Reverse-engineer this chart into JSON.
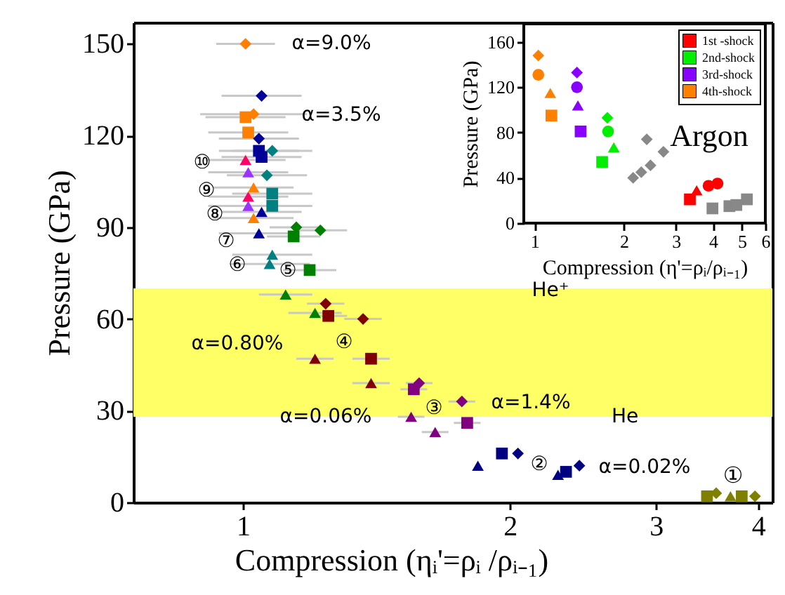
{
  "chart_data": [
    {
      "type": "scatter",
      "xlabel": "Compression (ηᵢ'=ρᵢ /ρᵢ₋₁)",
      "ylabel": "Pressure (GPa)",
      "xlim": [
        0.59,
        2.52
      ],
      "xticks": [
        1,
        2
      ],
      "ylim": [
        0,
        157
      ],
      "yticks": [
        0,
        30,
        60,
        90,
        120,
        150
      ],
      "grid": false,
      "bands": [
        {
          "axis": "y",
          "from": 28,
          "to": 70,
          "color": "#ffff66"
        }
      ],
      "annotations": [
        "α=9.0%",
        "α=3.5%",
        "α=0.80%",
        "α=0.06%",
        "α=1.4%",
        "α=0.02%",
        "He⁺",
        "He",
        "⑩",
        "⑨",
        "⑧",
        "⑦",
        "⑥",
        "⑤",
        "④",
        "③",
        "②"
      ],
      "series": [
        {
          "color": "#ff0066",
          "marker": "triangle",
          "x": [
            1.02,
            1.01
          ],
          "values": [
            100,
            112
          ],
          "xerrors": [
            0.15,
            0.15
          ]
        },
        {
          "color": "#9933ff",
          "marker": "triangle",
          "x": [
            1.02,
            1.02
          ],
          "values": [
            97,
            108
          ],
          "xerrors": [
            0.15,
            0.15
          ]
        },
        {
          "color": "#ff8000",
          "marker": "diamond",
          "x": [
            1.04,
            1.01
          ],
          "values": [
            127,
            150
          ],
          "xerrors": [
            0.2,
            0.11
          ]
        },
        {
          "color": "#ff8000",
          "marker": "square",
          "x": [
            1.02,
            1.01
          ],
          "values": [
            121,
            126
          ],
          "xerrors": [
            0.15,
            0.15
          ]
        },
        {
          "color": "#ff8000",
          "marker": "triangle",
          "x": [
            1.04,
            1.04
          ],
          "values": [
            93,
            103
          ],
          "xerrors": [
            0.15,
            0.15
          ]
        },
        {
          "color": "#000099",
          "marker": "diamond",
          "x": [
            1.06,
            1.07
          ],
          "values": [
            119,
            133
          ],
          "xerrors": [
            0.15,
            0.15
          ]
        },
        {
          "color": "#000099",
          "marker": "square",
          "x": [
            1.06,
            1.07
          ],
          "values": [
            115,
            113
          ],
          "xerrors": [
            0.15,
            0.15
          ]
        },
        {
          "color": "#000099",
          "marker": "triangle",
          "x": [
            1.06,
            1.07
          ],
          "values": [
            88,
            95
          ],
          "xerrors": [
            0.15,
            0.15
          ]
        },
        {
          "color": "#008080",
          "marker": "diamond",
          "x": [
            1.09,
            1.11
          ],
          "values": [
            107,
            115
          ],
          "xerrors": [
            0.15,
            0.15
          ]
        },
        {
          "color": "#008080",
          "marker": "square",
          "x": [
            1.11,
            1.11
          ],
          "values": [
            101,
            97
          ],
          "xerrors": [
            0.15,
            0.15
          ]
        },
        {
          "color": "#008080",
          "marker": "triangle",
          "x": [
            1.1,
            1.11
          ],
          "values": [
            78,
            81
          ],
          "xerrors": [
            0.15,
            0.15
          ]
        },
        {
          "color": "#008000",
          "marker": "diamond",
          "x": [
            1.2,
            1.29
          ],
          "values": [
            90,
            89
          ],
          "xerrors": [
            0.1,
            0.1
          ]
        },
        {
          "color": "#008000",
          "marker": "square",
          "x": [
            1.19,
            1.25
          ],
          "values": [
            87,
            76
          ],
          "xerrors": [
            0.1,
            0.1
          ]
        },
        {
          "color": "#008000",
          "marker": "triangle",
          "x": [
            1.16,
            1.27
          ],
          "values": [
            68,
            62
          ],
          "xerrors": [
            0.1,
            0.1
          ]
        },
        {
          "color": "#800000",
          "marker": "diamond",
          "x": [
            1.31,
            1.45
          ],
          "values": [
            65,
            60
          ],
          "xerrors": [
            0.07,
            0.07
          ]
        },
        {
          "color": "#800000",
          "marker": "square",
          "x": [
            1.32,
            1.48
          ],
          "values": [
            61,
            47
          ],
          "xerrors": [
            0.07,
            0.07
          ]
        },
        {
          "color": "#800000",
          "marker": "triangle",
          "x": [
            1.27,
            1.48
          ],
          "values": [
            47,
            39
          ],
          "xerrors": [
            0.07,
            0.07
          ]
        },
        {
          "color": "#800080",
          "marker": "diamond",
          "x": [
            1.66,
            1.82
          ],
          "values": [
            39,
            33
          ],
          "xerrors": [
            0.05,
            0.05
          ]
        },
        {
          "color": "#800080",
          "marker": "square",
          "x": [
            1.64,
            1.84
          ],
          "values": [
            37,
            26
          ],
          "xerrors": [
            0.05,
            0.05
          ]
        },
        {
          "color": "#800080",
          "marker": "triangle",
          "x": [
            1.63,
            1.72
          ],
          "values": [
            28,
            23
          ],
          "xerrors": [
            0.05,
            0.05
          ]
        },
        {
          "color": "#000080",
          "marker": "triangle",
          "x": [
            1.88,
            2.18
          ],
          "values": [
            12,
            9
          ]
        },
        {
          "color": "#000080",
          "marker": "square",
          "x": [
            1.97,
            2.21
          ],
          "values": [
            16,
            10
          ]
        },
        {
          "color": "#000080",
          "marker": "diamond",
          "x": [
            2.03,
            2.26
          ],
          "values": [
            16,
            12
          ]
        }
      ]
    },
    {
      "type": "scatter",
      "xlim": [
        2.93,
        4.14
      ],
      "xticks": [
        3,
        4
      ],
      "ylim": [
        0,
        157
      ],
      "tick_labels": "x",
      "grid": false,
      "bands": [
        {
          "axis": "y",
          "from": 28,
          "to": 70,
          "color": "#ffff66"
        }
      ],
      "annotations": [
        "①"
      ],
      "series": [
        {
          "color": "#808000",
          "marker": "square",
          "x": [
            3.5,
            3.84
          ],
          "values": [
            2,
            2
          ]
        },
        {
          "color": "#808000",
          "marker": "diamond",
          "x": [
            3.59,
            3.97
          ],
          "values": [
            3,
            2
          ]
        },
        {
          "color": "#808000",
          "marker": "triangle",
          "x": [
            3.73
          ],
          "values": [
            2
          ]
        }
      ]
    },
    {
      "type": "scatter",
      "xlabel": "Compression (η'=ρᵢ/ρᵢ₋₁)",
      "ylabel": "Pressure (GPa)",
      "log": "x",
      "xlim": [
        0.92,
        6
      ],
      "xticks": [
        1,
        2,
        3,
        4,
        5,
        6
      ],
      "ylim": [
        0,
        176
      ],
      "yticks": [
        0,
        40,
        80,
        120,
        160
      ],
      "grid": false,
      "legend": "top right",
      "annotations": [
        "Argon"
      ],
      "series": [
        {
          "name": "1st -shock",
          "color": "#ff0000",
          "marker": "circle",
          "x": [
            3.86,
            4.14
          ],
          "values": [
            33,
            35
          ]
        },
        {
          "name": "2nd-shock",
          "color": "#00ee00",
          "marker": "circle",
          "x": [
            1.77
          ],
          "values": [
            81
          ]
        },
        {
          "name": "3rd-shock",
          "color": "#8800ff",
          "marker": "circle",
          "x": [
            1.39
          ],
          "values": [
            120
          ]
        },
        {
          "name": "4th-shock",
          "color": "#ff8000",
          "marker": "circle",
          "x": [
            1.03
          ],
          "values": [
            131
          ]
        },
        {
          "color": "#ff0000",
          "marker": "square",
          "x": [
            3.34
          ],
          "values": [
            21
          ]
        },
        {
          "color": "#ff0000",
          "marker": "triangle",
          "x": [
            3.52
          ],
          "values": [
            29
          ]
        },
        {
          "color": "#00ee00",
          "marker": "diamond",
          "x": [
            1.76
          ],
          "values": [
            93
          ]
        },
        {
          "color": "#00ee00",
          "marker": "triangle",
          "x": [
            1.85
          ],
          "values": [
            67
          ]
        },
        {
          "color": "#00ee00",
          "marker": "square",
          "x": [
            1.69
          ],
          "values": [
            54
          ]
        },
        {
          "color": "#8800ff",
          "marker": "diamond",
          "x": [
            1.39
          ],
          "values": [
            133
          ]
        },
        {
          "color": "#8800ff",
          "marker": "triangle",
          "x": [
            1.4
          ],
          "values": [
            104
          ]
        },
        {
          "color": "#8800ff",
          "marker": "square",
          "x": [
            1.43
          ],
          "values": [
            81
          ]
        },
        {
          "color": "#ff8000",
          "marker": "diamond",
          "x": [
            1.03
          ],
          "values": [
            148
          ]
        },
        {
          "color": "#ff8000",
          "marker": "triangle",
          "x": [
            1.13
          ],
          "values": [
            115
          ]
        },
        {
          "color": "#ff8000",
          "marker": "square",
          "x": [
            1.14
          ],
          "values": [
            95
          ]
        },
        {
          "color": "#888888",
          "marker": "diamond",
          "x": [
            2.15,
            2.29,
            2.46,
            2.72,
            2.39
          ],
          "values": [
            40,
            45,
            51,
            63,
            74
          ]
        },
        {
          "color": "#888888",
          "marker": "square",
          "x": [
            3.98,
            4.54,
            4.79,
            5.2
          ],
          "values": [
            13,
            15,
            16,
            21
          ]
        }
      ]
    }
  ]
}
